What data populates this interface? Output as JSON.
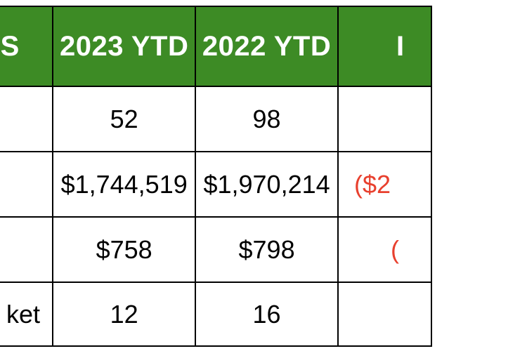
{
  "table": {
    "headers": [
      "ES",
      "2023 YTD",
      "2022 YTD",
      "I"
    ],
    "rows": [
      {
        "label": "",
        "y2023": "52",
        "y2022": "98",
        "change": ""
      },
      {
        "label": "",
        "y2023": "$1,744,519",
        "y2022": "$1,970,214",
        "change": "($2"
      },
      {
        "label": "",
        "y2023": "$758",
        "y2022": "$798",
        "change": "("
      },
      {
        "label": "ket",
        "y2023": "12",
        "y2022": "16",
        "change": ""
      }
    ],
    "colors": {
      "header_bg": "#3d8b25",
      "header_text": "#ffffff",
      "negative_text": "#e8402e"
    }
  }
}
